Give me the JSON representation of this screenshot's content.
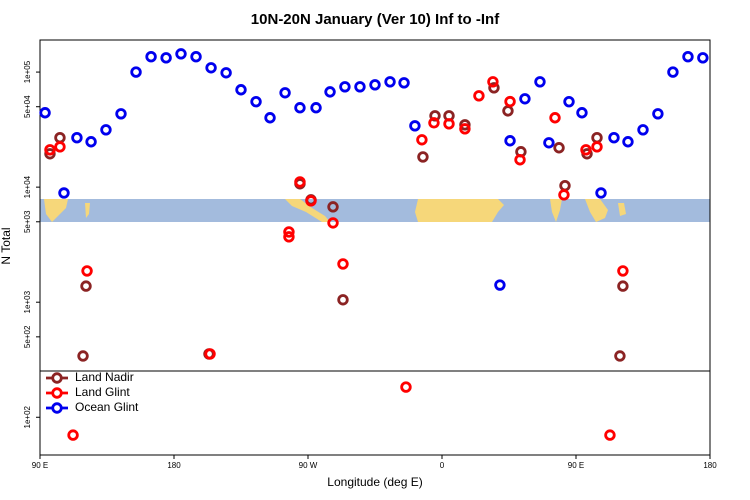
{
  "chart_data": {
    "type": "scatter",
    "title": "10N-20N January (Ver 10)   Inf to -Inf",
    "x_label": "Longitude (deg E)",
    "y_label": "N Total",
    "log_y": true,
    "legend": "bottomleft",
    "xlim": [
      90,
      540
    ],
    "ylim": [
      47,
      190000
    ],
    "xticks": [
      {
        "value": 90,
        "label": "90 E"
      },
      {
        "value": 180,
        "label": "180"
      },
      {
        "value": 270,
        "label": "90 W"
      },
      {
        "value": 360,
        "label": "0"
      },
      {
        "value": 450,
        "label": "90 E"
      },
      {
        "value": 540,
        "label": "180"
      }
    ],
    "yticks": [
      {
        "value": 100,
        "label": "1e+02"
      },
      {
        "value": 500,
        "label": "5e+02"
      },
      {
        "value": 1000,
        "label": "1e+03"
      },
      {
        "value": 5000,
        "label": "5e+03"
      },
      {
        "value": 10000,
        "label": "1e+04"
      },
      {
        "value": 50000,
        "label": "5e+04"
      },
      {
        "value": 100000,
        "label": "1e+05"
      }
    ],
    "series": [
      {
        "name": "Land Nadir",
        "color": "#8b2323",
        "x": [
          96.7,
          103.4,
          118.9,
          120.9,
          203.5,
          264.6,
          272,
          286.8,
          293.5,
          347.2,
          355.3,
          364.7,
          375.4,
          394.9,
          404.3,
          413,
          438.6,
          442.6,
          457.4,
          464.1,
          479.5,
          481.5
        ],
        "values": [
          19500,
          26900,
          341,
          1380,
          355,
          10700,
          7750,
          6740,
          1050,
          18300,
          41700,
          41700,
          34800,
          73000,
          46000,
          20300,
          22000,
          10300,
          19500,
          26900,
          341,
          1380
        ]
      },
      {
        "name": "Land Glint",
        "color": "#ff0000",
        "x": [
          96.7,
          103.4,
          112.2,
          121.6,
          204.2,
          257.2,
          257.2,
          264.6,
          272,
          286.8,
          293.5,
          335.8,
          346.5,
          354.6,
          364.7,
          375.4,
          384.8,
          394.2,
          405.7,
          412.4,
          435.9,
          441.9,
          456.7,
          464.1,
          472.8,
          481.5
        ],
        "values": [
          21100,
          22400,
          70,
          1870,
          355,
          4080,
          3700,
          11100,
          7600,
          4890,
          2150,
          183,
          25800,
          36200,
          35500,
          32100,
          62200,
          82300,
          55400,
          17300,
          40100,
          8570,
          21100,
          22400,
          70,
          1870
        ]
      },
      {
        "name": "Ocean Glint",
        "color": "#0000ee",
        "x": [
          93.4,
          106.1,
          114.8,
          124.3,
          134.3,
          144.4,
          154.5,
          164.6,
          174.7,
          184.7,
          194.8,
          204.9,
          215,
          225,
          235.1,
          244.5,
          254.6,
          264.6,
          275.4,
          284.8,
          294.8,
          304.9,
          315,
          325.1,
          334.5,
          341.8,
          398.9,
          405.7,
          415.7,
          425.8,
          431.8,
          445.3,
          454,
          466.8,
          475.5,
          484.9,
          495,
          505,
          515.1,
          525.2,
          535.2
        ],
        "values": [
          44300,
          8900,
          26900,
          24800,
          31500,
          43400,
          100000,
          136000,
          133000,
          144000,
          136000,
          109000,
          98600,
          70200,
          55300,
          40100,
          66100,
          49000,
          49000,
          67300,
          74500,
          74500,
          77500,
          82300,
          80700,
          34100,
          1410,
          25300,
          58600,
          82300,
          24300,
          55300,
          44300,
          8900,
          26900,
          24800,
          31500,
          43400,
          100000,
          136000,
          133000
        ]
      }
    ]
  }
}
